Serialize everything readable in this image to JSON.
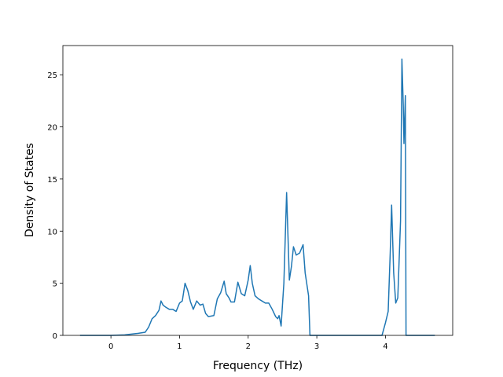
{
  "chart_data": {
    "type": "line",
    "x_label": "Frequency (THz)",
    "y_label": "Density of States",
    "color": "#1f77b4",
    "x": [
      -0.45,
      0,
      0.2,
      0.4,
      0.5,
      0.55,
      0.6,
      0.65,
      0.7,
      0.73,
      0.76,
      0.8,
      0.85,
      0.9,
      0.95,
      1.0,
      1.04,
      1.08,
      1.12,
      1.16,
      1.2,
      1.25,
      1.3,
      1.34,
      1.38,
      1.42,
      1.5,
      1.55,
      1.6,
      1.65,
      1.68,
      1.72,
      1.75,
      1.8,
      1.85,
      1.9,
      1.95,
      2.0,
      2.03,
      2.06,
      2.1,
      2.15,
      2.2,
      2.25,
      2.3,
      2.35,
      2.4,
      2.43,
      2.45,
      2.48,
      2.52,
      2.56,
      2.6,
      2.63,
      2.66,
      2.7,
      2.75,
      2.8,
      2.83,
      2.88,
      2.9,
      3.5,
      3.95,
      4.0,
      4.04,
      4.07,
      4.09,
      4.12,
      4.15,
      4.18,
      4.22,
      4.24,
      4.26,
      4.27,
      4.29,
      4.3,
      4.72
    ],
    "values": [
      0,
      0,
      0.05,
      0.2,
      0.3,
      0.8,
      1.6,
      1.9,
      2.4,
      3.3,
      2.9,
      2.7,
      2.5,
      2.5,
      2.3,
      3.1,
      3.3,
      5.0,
      4.3,
      3.2,
      2.5,
      3.3,
      2.9,
      3.0,
      2.1,
      1.8,
      1.9,
      3.5,
      4.1,
      5.2,
      4.0,
      3.6,
      3.2,
      3.2,
      5.1,
      4.0,
      3.8,
      5.3,
      6.7,
      5.0,
      3.8,
      3.5,
      3.3,
      3.1,
      3.1,
      2.5,
      1.8,
      1.6,
      1.9,
      0.9,
      5.0,
      13.7,
      5.3,
      6.6,
      8.5,
      7.7,
      7.9,
      8.7,
      6.0,
      3.8,
      0,
      0,
      0,
      1.2,
      2.3,
      8.0,
      12.5,
      6.0,
      3.1,
      3.6,
      11.0,
      26.5,
      22,
      18.4,
      23.0,
      0,
      0
    ],
    "xlim": [
      -0.7,
      4.98
    ],
    "ylim": [
      0,
      27.8
    ],
    "xticks": [
      0,
      1,
      2,
      3,
      4
    ],
    "yticks": [
      0,
      5,
      10,
      15,
      20,
      25
    ]
  }
}
